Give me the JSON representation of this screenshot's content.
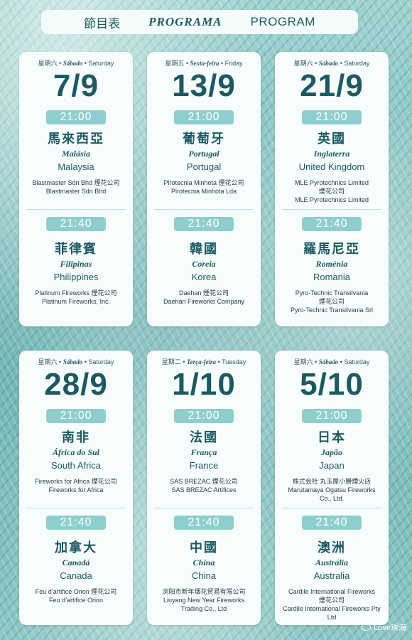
{
  "header": {
    "zh": "節目表",
    "pt": "PROGRAMA",
    "en": "PROGRAM"
  },
  "cards": [
    {
      "day_zh": "星期六",
      "day_pt": "Sábado",
      "day_en": "Saturday",
      "date": "7/9",
      "blocks": [
        {
          "time": "21:00",
          "zh": "馬來西亞",
          "pt": "Malásia",
          "en": "Malaysia",
          "company": [
            "Blastmaster Sdn Bhd 煙花公司",
            "Blastmaster Sdn Bhd"
          ]
        },
        {
          "time": "21:40",
          "zh": "菲律賓",
          "pt": "Filipinas",
          "en": "Philippines",
          "company": [
            "Platinum Fireworks 煙花公司",
            "Platinum Fireworks, Inc."
          ]
        }
      ]
    },
    {
      "day_zh": "星期五",
      "day_pt": "Sexta-feira",
      "day_en": "Friday",
      "date": "13/9",
      "blocks": [
        {
          "time": "21:00",
          "zh": "葡萄牙",
          "pt": "Portugal",
          "en": "Portugal",
          "company": [
            "Pirotecnia Minhota 煙花公司",
            "Pirotecnia Minhota Lda"
          ]
        },
        {
          "time": "21:40",
          "zh": "韓國",
          "pt": "Coreia",
          "en": "Korea",
          "company": [
            "Daehan 煙花公司",
            "Daehan Fireworks Company"
          ]
        }
      ]
    },
    {
      "day_zh": "星期六",
      "day_pt": "Sábado",
      "day_en": "Saturday",
      "date": "21/9",
      "blocks": [
        {
          "time": "21:00",
          "zh": "英國",
          "pt": "Inglaterra",
          "en": "United Kingdom",
          "company": [
            "MLE Pyrotechnics Limited",
            "煙花公司",
            "MLE Pyrotechnics Limited"
          ]
        },
        {
          "time": "21:40",
          "zh": "羅馬尼亞",
          "pt": "Roménia",
          "en": "Romania",
          "company": [
            "Pyro-Technic Transilvania",
            "煙花公司",
            "Pyro-Technic Transilvania Srl"
          ]
        }
      ]
    },
    {
      "day_zh": "星期六",
      "day_pt": "Sábado",
      "day_en": "Saturday",
      "date": "28/9",
      "blocks": [
        {
          "time": "21:00",
          "zh": "南非",
          "pt": "África do Sul",
          "en": "South Africa",
          "company": [
            "Fireworks for Africa 煙花公司",
            "Fireworks for Africa"
          ]
        },
        {
          "time": "21:40",
          "zh": "加拿大",
          "pt": "Canadá",
          "en": "Canada",
          "company": [
            "Feu d’artifice Orion 煙花公司",
            "Feu d’artifice Orion"
          ]
        }
      ]
    },
    {
      "day_zh": "星期二",
      "day_pt": "Terça-feira",
      "day_en": "Tuesday",
      "date": "1/10",
      "blocks": [
        {
          "time": "21:00",
          "zh": "法國",
          "pt": "França",
          "en": "France",
          "company": [
            "SAS BREZAC 煙花公司",
            "SAS BREZAC Artifices"
          ]
        },
        {
          "time": "21:40",
          "zh": "中國",
          "pt": "China",
          "en": "China",
          "company": [
            "浏阳市新年烟花贸易有限公司",
            "Liuyang New Year Fireworks",
            "Trading Co., Ltd"
          ]
        }
      ]
    },
    {
      "day_zh": "星期六",
      "day_pt": "Sábado",
      "day_en": "Saturday",
      "date": "5/10",
      "blocks": [
        {
          "time": "21:00",
          "zh": "日本",
          "pt": "Japão",
          "en": "Japan",
          "company": [
            "株式会社 丸玉屋小勝煙火店",
            "Marutamaya Ogatsu Fireworks",
            "Co., Ltd."
          ]
        },
        {
          "time": "21:40",
          "zh": "澳洲",
          "pt": "Austrália",
          "en": "Australia",
          "company": [
            "Cardile International Fireworks",
            "煙花公司",
            "Cardile International Fireworks Pty Ltd"
          ]
        }
      ]
    }
  ],
  "watermark": "Love珠海"
}
